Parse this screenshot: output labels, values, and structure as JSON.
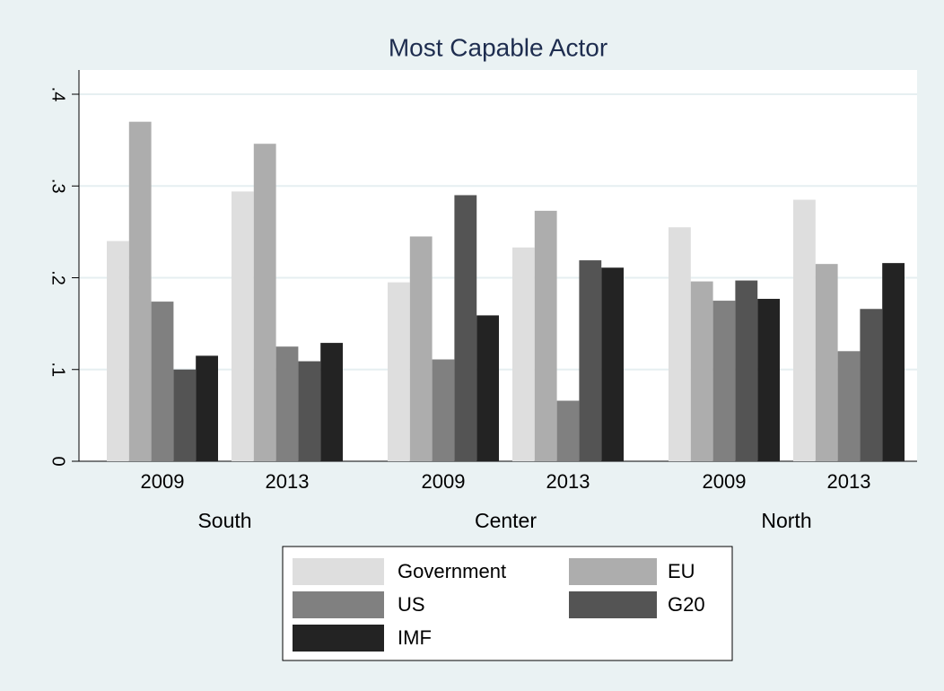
{
  "chart_data": {
    "type": "bar",
    "title": "Most Capable Actor",
    "categories": [
      "2009",
      "2013",
      "2009",
      "2013",
      "2009",
      "2013"
    ],
    "groups": [
      "South",
      "Center",
      "North"
    ],
    "series": [
      {
        "name": "Government",
        "color": "#dedede",
        "values": [
          0.24,
          0.294,
          0.195,
          0.233,
          0.255,
          0.285
        ]
      },
      {
        "name": "EU",
        "color": "#adadad",
        "values": [
          0.37,
          0.346,
          0.245,
          0.273,
          0.196,
          0.215
        ]
      },
      {
        "name": "US",
        "color": "#808080",
        "values": [
          0.174,
          0.125,
          0.111,
          0.066,
          0.175,
          0.12
        ]
      },
      {
        "name": "G20",
        "color": "#545454",
        "values": [
          0.1,
          0.109,
          0.29,
          0.219,
          0.197,
          0.166
        ]
      },
      {
        "name": "IMF",
        "color": "#232323",
        "values": [
          0.115,
          0.129,
          0.159,
          0.211,
          0.177,
          0.216
        ]
      }
    ],
    "ylim": [
      0,
      0.4
    ],
    "yticks": [
      {
        "value": 0,
        "label": "0"
      },
      {
        "value": 0.1,
        "label": ".1"
      },
      {
        "value": 0.2,
        "label": ".2"
      },
      {
        "value": 0.3,
        "label": ".3"
      },
      {
        "value": 0.4,
        "label": ".4"
      }
    ],
    "grid": true
  }
}
